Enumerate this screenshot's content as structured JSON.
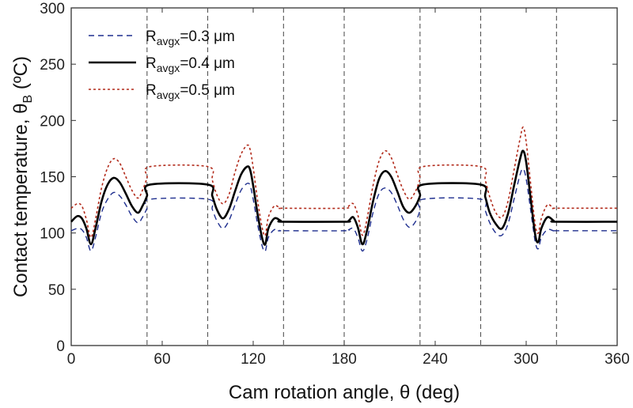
{
  "chart_data": {
    "type": "line",
    "xlabel": "Cam rotation angle, θ (deg)",
    "ylabel": "Contact temperature, θ",
    "ylabel_sub": "B",
    "ylabel_unit": " (ºC)",
    "xlim": [
      0,
      360
    ],
    "ylim": [
      0,
      300
    ],
    "xticks": [
      0,
      60,
      120,
      180,
      240,
      300,
      360
    ],
    "yticks": [
      0,
      50,
      100,
      150,
      200,
      250,
      300
    ],
    "x_tick_labels": [
      "0",
      "60",
      "120",
      "180",
      "240",
      "300",
      "360"
    ],
    "y_tick_labels": [
      "0",
      "50",
      "100",
      "150",
      "200",
      "250",
      "300"
    ],
    "vlines": [
      50,
      90,
      140,
      180,
      230,
      270,
      320
    ],
    "grid": false,
    "legend_position": "top-left",
    "series": [
      {
        "name_main": "R",
        "name_sub": "avgx",
        "name_tail": "=0.3 μm",
        "color": "#1f2f8f",
        "dash": "7,5",
        "width": 1.4,
        "x": [
          0,
          4,
          7,
          10,
          13,
          16,
          20,
          24,
          28,
          32,
          36,
          40,
          44,
          47,
          50,
          52,
          90,
          93,
          96,
          100,
          104,
          108,
          112,
          116,
          118,
          120,
          123,
          126,
          128,
          130,
          134,
          138,
          140,
          180,
          183,
          186,
          189,
          192,
          195,
          199,
          203,
          207,
          211,
          215,
          219,
          223,
          227,
          230,
          232,
          270,
          273,
          276,
          280,
          284,
          288,
          292,
          296,
          298,
          300,
          303,
          306,
          308,
          310,
          314,
          318,
          320,
          360
        ],
        "y": [
          102,
          104,
          103,
          96,
          84,
          96,
          118,
          130,
          136,
          133,
          125,
          115,
          109,
          114,
          122,
          130,
          130,
          121,
          111,
          104,
          111,
          125,
          138,
          144,
          142,
          130,
          107,
          88,
          84,
          96,
          103,
          102,
          102,
          102,
          103,
          104,
          96,
          84,
          94,
          118,
          135,
          140,
          136,
          125,
          112,
          105,
          110,
          120,
          130,
          130,
          120,
          109,
          100,
          98,
          108,
          130,
          152,
          157,
          148,
          120,
          92,
          86,
          96,
          103,
          102,
          102,
          102
        ]
      },
      {
        "name_main": "R",
        "name_sub": "avgx",
        "name_tail": "=0.4 μm",
        "color": "#000000",
        "dash": "",
        "width": 2.6,
        "x": [
          0,
          4,
          7,
          10,
          13,
          16,
          20,
          24,
          28,
          32,
          36,
          40,
          44,
          47,
          50,
          52,
          90,
          93,
          96,
          100,
          104,
          108,
          112,
          116,
          118,
          120,
          123,
          126,
          128,
          130,
          134,
          138,
          140,
          180,
          183,
          186,
          189,
          192,
          195,
          199,
          203,
          207,
          211,
          215,
          219,
          223,
          227,
          230,
          232,
          270,
          273,
          276,
          280,
          284,
          288,
          292,
          296,
          298,
          300,
          303,
          306,
          308,
          310,
          314,
          318,
          320,
          360
        ],
        "y": [
          110,
          115,
          113,
          104,
          90,
          104,
          128,
          143,
          149,
          145,
          135,
          124,
          118,
          124,
          133,
          143,
          143,
          133,
          121,
          113,
          121,
          137,
          152,
          159,
          156,
          142,
          116,
          95,
          90,
          104,
          113,
          111,
          110,
          110,
          111,
          114,
          105,
          90,
          102,
          128,
          148,
          155,
          150,
          137,
          123,
          118,
          124,
          133,
          143,
          143,
          132,
          118,
          108,
          104,
          117,
          142,
          166,
          173,
          163,
          130,
          98,
          92,
          104,
          114,
          111,
          110,
          110
        ]
      },
      {
        "name_main": "R",
        "name_sub": "avgx",
        "name_tail": "=0.5 μm",
        "color": "#b22a1a",
        "dash": "3,3",
        "width": 1.6,
        "x": [
          0,
          4,
          7,
          10,
          13,
          16,
          20,
          24,
          28,
          32,
          36,
          40,
          44,
          47,
          50,
          52,
          90,
          93,
          96,
          100,
          104,
          108,
          112,
          116,
          118,
          120,
          123,
          126,
          128,
          130,
          134,
          138,
          140,
          180,
          183,
          186,
          189,
          192,
          195,
          199,
          203,
          207,
          211,
          215,
          219,
          223,
          227,
          230,
          232,
          270,
          273,
          276,
          280,
          284,
          288,
          292,
          296,
          298,
          300,
          303,
          306,
          308,
          310,
          314,
          318,
          320,
          360
        ],
        "y": [
          122,
          126,
          124,
          112,
          96,
          112,
          140,
          158,
          166,
          162,
          150,
          138,
          131,
          138,
          149,
          159,
          159,
          147,
          134,
          126,
          134,
          154,
          170,
          178,
          174,
          158,
          128,
          104,
          98,
          114,
          124,
          122,
          122,
          122,
          124,
          126,
          116,
          98,
          112,
          142,
          164,
          173,
          167,
          152,
          138,
          130,
          137,
          148,
          159,
          159,
          147,
          132,
          118,
          114,
          128,
          156,
          184,
          194,
          181,
          143,
          107,
          100,
          113,
          125,
          122,
          122,
          122
        ]
      }
    ]
  }
}
